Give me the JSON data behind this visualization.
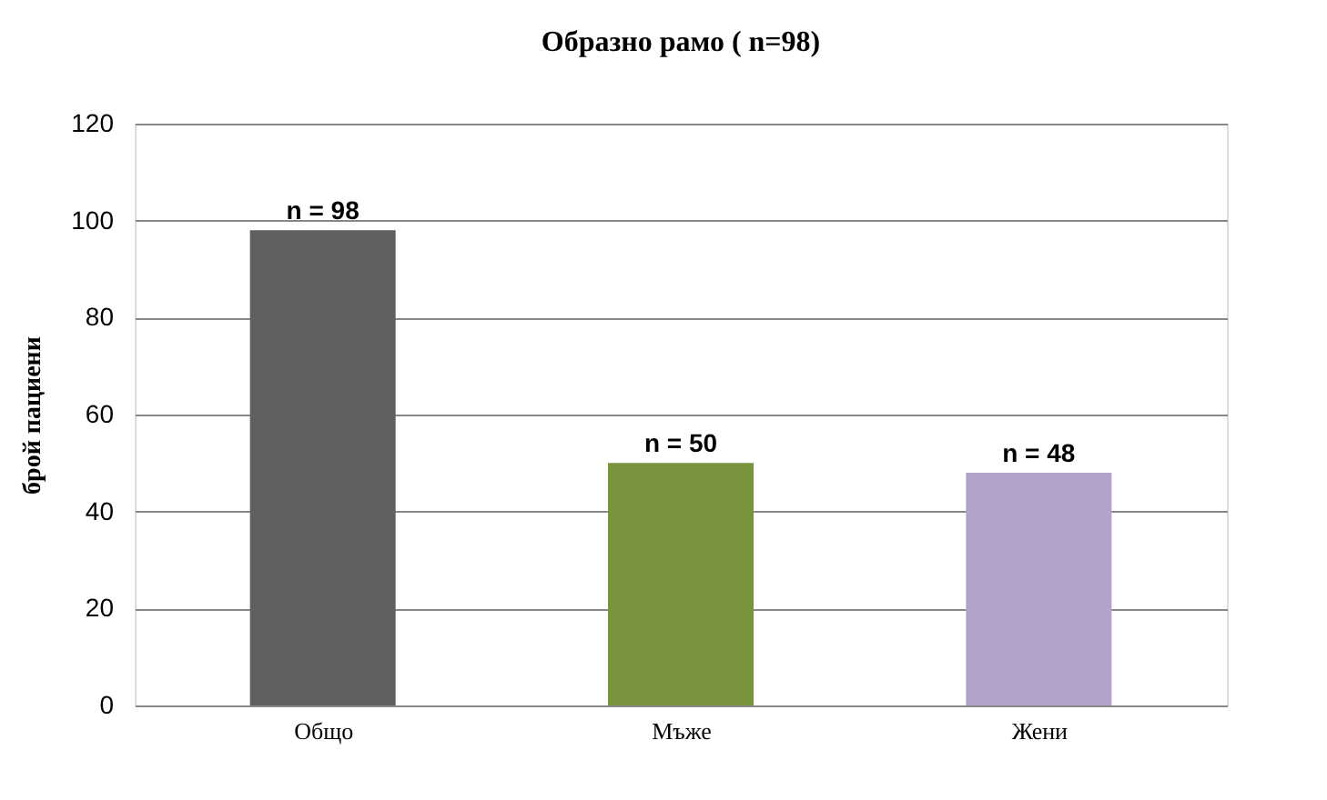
{
  "chart_data": {
    "type": "bar",
    "title": "Образно рамо ( n=98)",
    "ylabel": "брой пациени",
    "categories": [
      "Общо",
      "Мъже",
      "Жени"
    ],
    "values": [
      98,
      50,
      48
    ],
    "value_labels": [
      "n = 98",
      "n = 50",
      "n = 48"
    ],
    "colors": [
      "#606060",
      "#77933c",
      "#b3a2c7"
    ],
    "ylim": [
      0,
      120
    ],
    "yticks": [
      0,
      20,
      40,
      60,
      80,
      100,
      120
    ],
    "grid": "y"
  }
}
